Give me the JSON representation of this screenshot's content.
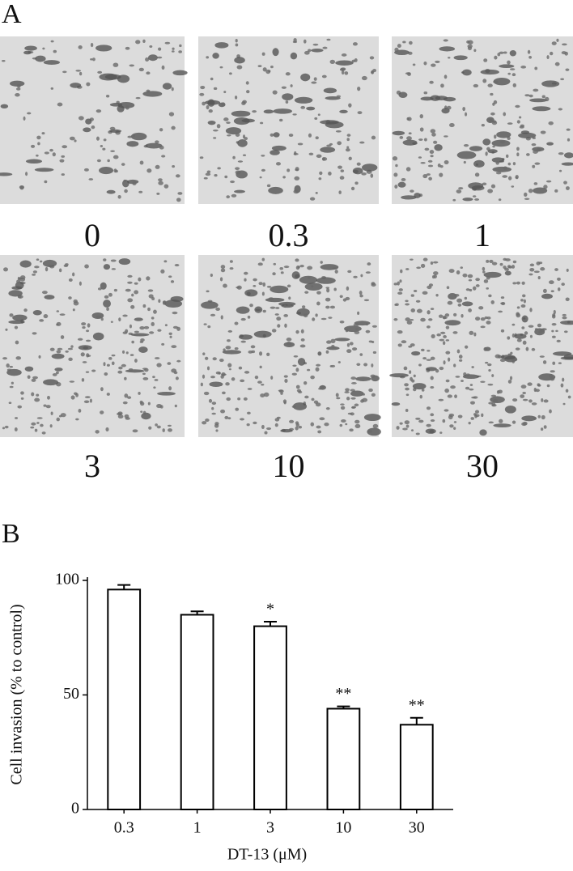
{
  "panel_a": {
    "label": "A",
    "images": [
      "0",
      "0.3",
      "1",
      "3",
      "10",
      "30"
    ]
  },
  "chart_data": {
    "type": "bar",
    "panel_label": "B",
    "categories": [
      "0.3",
      "1",
      "3",
      "10",
      "30"
    ],
    "values": [
      96,
      85,
      80,
      44,
      37
    ],
    "errors": [
      2,
      1.5,
      2,
      1,
      3
    ],
    "significance": [
      null,
      null,
      "*",
      "**",
      "**"
    ],
    "color": "#ffffff",
    "xlabel": "DT-13 (μM)",
    "ylabel": "Cell invasion (% to control)",
    "ylim": [
      0,
      100
    ],
    "yticks": [
      0,
      50,
      100
    ],
    "grid": false
  }
}
